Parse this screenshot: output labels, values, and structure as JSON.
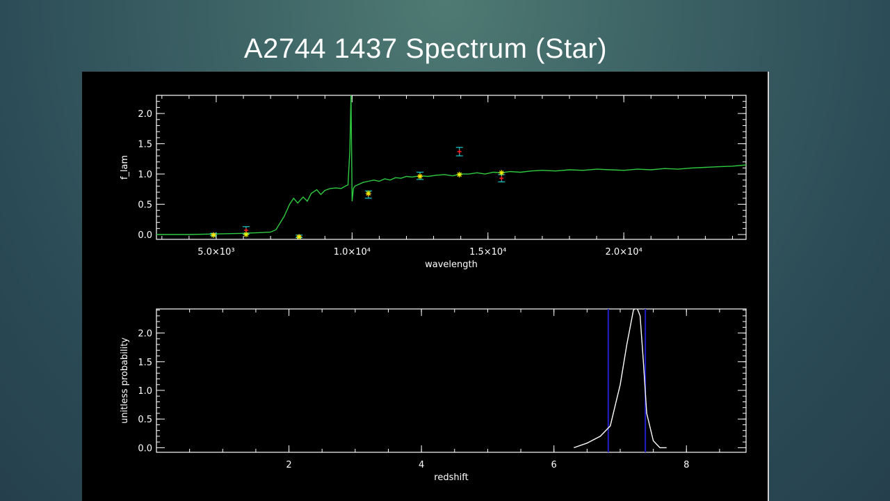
{
  "slide": {
    "title": "A2744 1437 Spectrum (Star)"
  },
  "chart_data": [
    {
      "type": "line",
      "xlabel": "wavelength",
      "ylabel": "f_lam",
      "xlim": [
        2800,
        24500
      ],
      "ylim": [
        -0.08,
        2.3
      ],
      "x_ticks": [
        {
          "value": 5000,
          "label": "5.0×10³"
        },
        {
          "value": 10000,
          "label": "1.0×10⁴"
        },
        {
          "value": 15000,
          "label": "1.5×10⁴"
        },
        {
          "value": 20000,
          "label": "2.0×10⁴"
        }
      ],
      "y_ticks": [
        {
          "value": 0.0,
          "label": "0.0"
        },
        {
          "value": 0.5,
          "label": "0.5"
        },
        {
          "value": 1.0,
          "label": "1.0"
        },
        {
          "value": 1.5,
          "label": "1.5"
        },
        {
          "value": 2.0,
          "label": "2.0"
        }
      ],
      "series": [
        {
          "color": "#2ecc40",
          "x": [
            2800,
            4000,
            5000,
            6000,
            7000,
            7200,
            7500,
            7700,
            7850,
            8000,
            8200,
            8350,
            8500,
            8700,
            8850,
            9000,
            9200,
            9400,
            9600,
            9750,
            9850,
            9920,
            9960,
            10000,
            10050,
            10100,
            10200,
            10400,
            10600,
            10800,
            11000,
            11200,
            11400,
            11600,
            11800,
            12000,
            12200,
            12500,
            12800,
            13100,
            13400,
            13700,
            14000,
            14300,
            14600,
            14900,
            15200,
            15500,
            15800,
            16200,
            16600,
            17000,
            17500,
            18000,
            18500,
            19000,
            19500,
            20000,
            20500,
            21000,
            21500,
            22000,
            22500,
            23000,
            23500,
            24000,
            24500
          ],
          "y": [
            0.0,
            0.0,
            0.01,
            0.02,
            0.04,
            0.08,
            0.3,
            0.5,
            0.6,
            0.52,
            0.62,
            0.55,
            0.68,
            0.74,
            0.66,
            0.73,
            0.76,
            0.77,
            0.76,
            0.8,
            0.82,
            1.4,
            2.3,
            0.55,
            0.76,
            0.8,
            0.82,
            0.86,
            0.88,
            0.9,
            0.88,
            0.92,
            0.9,
            0.94,
            0.93,
            0.96,
            0.95,
            0.97,
            0.96,
            0.98,
            0.99,
            0.97,
            1.0,
            1.0,
            1.02,
            1.0,
            1.03,
            1.02,
            1.04,
            1.03,
            1.05,
            1.06,
            1.05,
            1.07,
            1.06,
            1.08,
            1.07,
            1.06,
            1.08,
            1.07,
            1.09,
            1.08,
            1.1,
            1.11,
            1.12,
            1.13,
            1.15
          ]
        }
      ],
      "photometry": {
        "x": [
          4900,
          6100,
          8050,
          10600,
          12500,
          13950,
          15500
        ],
        "observed": [
          0.0,
          0.07,
          -0.03,
          0.66,
          0.97,
          1.37,
          0.93
        ],
        "error": [
          0.02,
          0.06,
          0.02,
          0.06,
          0.06,
          0.07,
          0.06
        ],
        "model": [
          -0.01,
          0.0,
          -0.04,
          0.68,
          0.96,
          0.99,
          1.02
        ],
        "observed_color": "#ff2020",
        "error_color": "#19c8c8",
        "model_color": "#f6f600"
      }
    },
    {
      "type": "line",
      "xlabel": "redshift",
      "ylabel": "unitless probability",
      "xlim": [
        0.0,
        8.9
      ],
      "ylim": [
        -0.08,
        2.42
      ],
      "x_ticks": [
        {
          "value": 2,
          "label": "2"
        },
        {
          "value": 4,
          "label": "4"
        },
        {
          "value": 6,
          "label": "6"
        },
        {
          "value": 8,
          "label": "8"
        }
      ],
      "y_ticks": [
        {
          "value": 0.0,
          "label": "0.0"
        },
        {
          "value": 0.5,
          "label": "0.5"
        },
        {
          "value": 1.0,
          "label": "1.0"
        },
        {
          "value": 1.5,
          "label": "1.5"
        },
        {
          "value": 2.0,
          "label": "2.0"
        }
      ],
      "series": [
        {
          "color": "#ffffff",
          "x": [
            6.3,
            6.5,
            6.7,
            6.85,
            7.0,
            7.1,
            7.2,
            7.25,
            7.3,
            7.35,
            7.4,
            7.5,
            7.6,
            7.7
          ],
          "y": [
            0.0,
            0.08,
            0.2,
            0.38,
            1.1,
            1.8,
            2.4,
            2.45,
            2.3,
            1.5,
            0.6,
            0.12,
            0.0,
            0.0
          ]
        }
      ],
      "vertical_lines": {
        "x": [
          6.82,
          7.38
        ],
        "color": "#2020c8"
      }
    }
  ]
}
